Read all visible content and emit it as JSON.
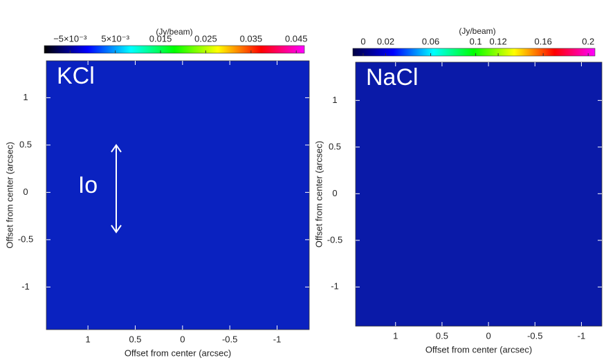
{
  "chart_data": [
    {
      "type": "image",
      "label": "KCl",
      "annotation": "Io",
      "colorbar_label": "(Jy/beam)",
      "clim": [
        -0.0107,
        0.0468
      ],
      "cticks": [
        {
          "value": -0.005,
          "label": "−5×10⁻³"
        },
        {
          "value": 0.005,
          "label": "5×10⁻³"
        },
        0.015,
        0.025,
        0.035,
        0.045
      ],
      "colors": [
        "#000000",
        "#0000ff",
        "#00ffff",
        "#00ff00",
        "#ffff00",
        "#ff0000",
        "#ff00ff"
      ],
      "xlabel": "Offset from center (arcsec)",
      "ylabel": "Offset from center (arcsec)",
      "xlim": [
        1.44,
        -1.34
      ],
      "xticks": [
        1,
        0.5,
        0,
        -0.5,
        -1
      ],
      "ylim": [
        -1.45,
        1.39
      ],
      "yticks": [
        1,
        0.5,
        0,
        -0.5,
        -1
      ]
    },
    {
      "type": "image",
      "label": "NaCl",
      "colorbar_label": "(Jy/beam)",
      "clim": [
        -0.0092,
        0.206
      ],
      "cticks": [
        0,
        0.02,
        0.06,
        0.1,
        0.12,
        0.16,
        0.2
      ],
      "colors": [
        "#000044",
        "#0000ff",
        "#00ffff",
        "#00ff00",
        "#ffff00",
        "#ff0000",
        "#ff00ff"
      ],
      "xlabel": "Offset from center (arcsec)",
      "ylabel": "Offset from center (arcsec)",
      "xlim": [
        1.43,
        -1.22
      ],
      "xticks": [
        1,
        0.5,
        0,
        -0.5,
        -1
      ],
      "ylim": [
        -1.42,
        1.41
      ],
      "yticks": [
        1,
        0.5,
        0,
        -0.5,
        -1
      ]
    }
  ]
}
